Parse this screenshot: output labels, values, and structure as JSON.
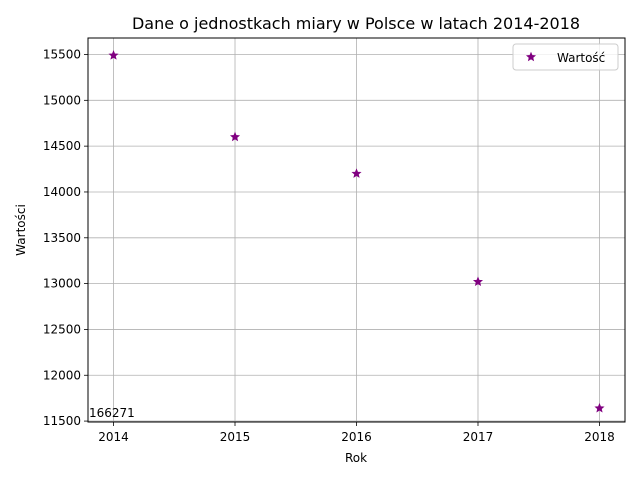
{
  "chart_data": {
    "type": "scatter",
    "title": "Dane o jednostkach miary w Polsce w latach 2014-2018",
    "xlabel": "Rok",
    "ylabel": "Wartości",
    "x": [
      2014,
      2015,
      2016,
      2017,
      2018
    ],
    "series": [
      {
        "name": "Wartość",
        "values": [
          15490,
          14600,
          14200,
          13020,
          11640
        ]
      }
    ],
    "xlim": [
      2013.79,
      2018.21
    ],
    "ylim": [
      11490,
      15680
    ],
    "xticks": [
      "2014",
      "2015",
      "2016",
      "2017",
      "2018"
    ],
    "yticks": [
      "11500",
      "12000",
      "12500",
      "13000",
      "13500",
      "14000",
      "14500",
      "15000",
      "15500"
    ],
    "grid": true,
    "legend_position": "top-right",
    "annotation": "166271",
    "marker_color": "#800080",
    "marker_shape": "star"
  }
}
